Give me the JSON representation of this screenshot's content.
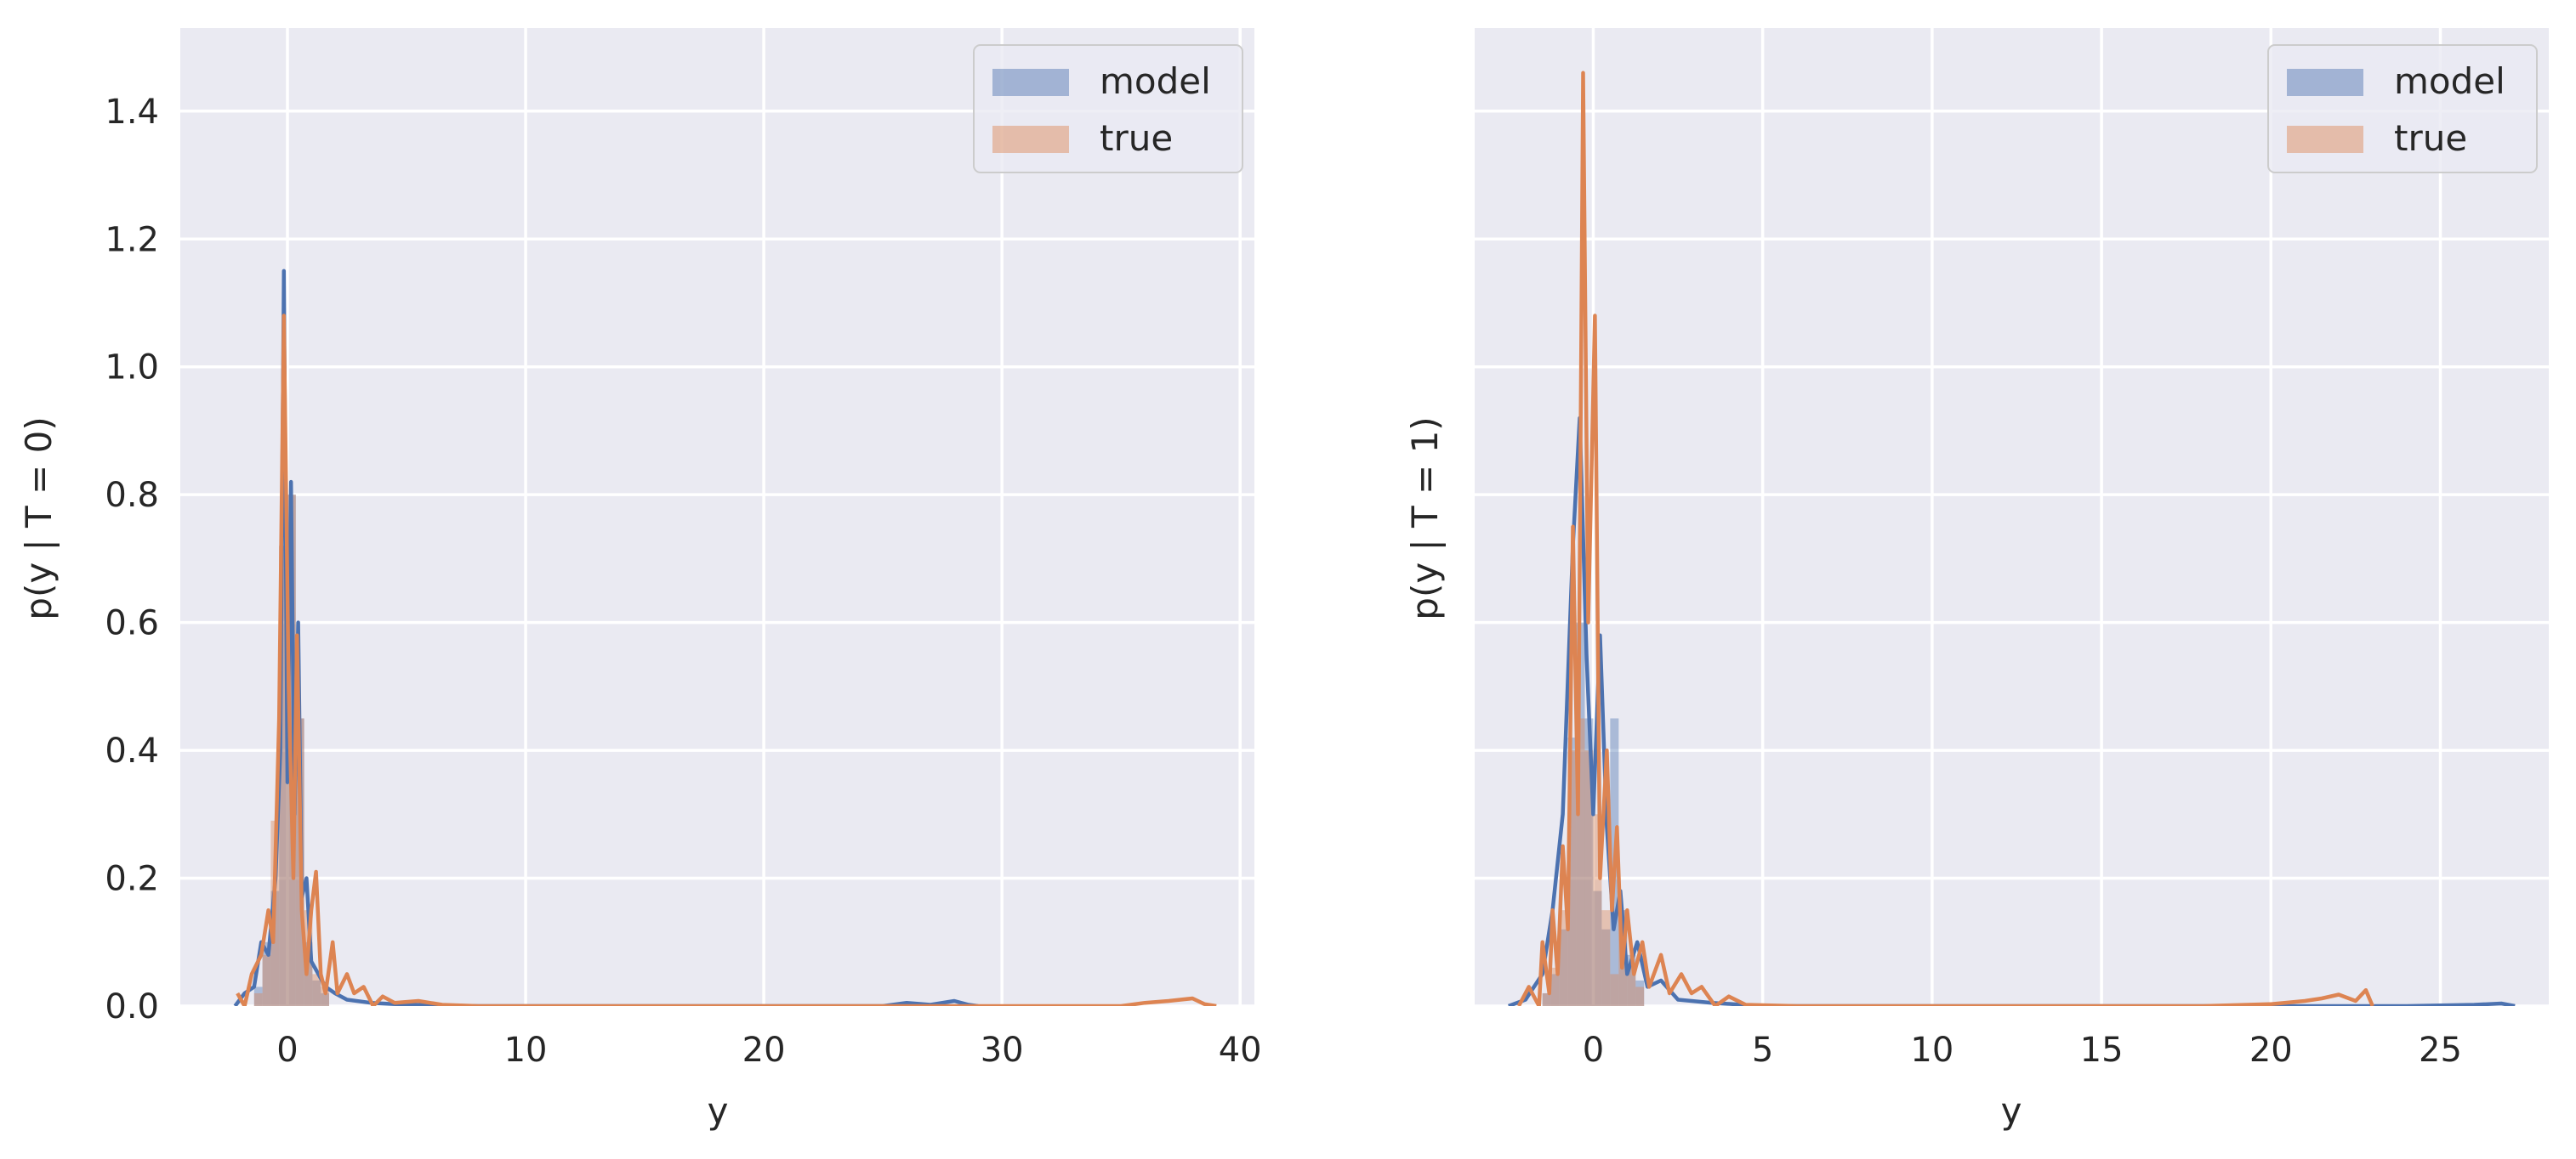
{
  "chart_data": [
    {
      "type": "area",
      "xlabel": "y",
      "ylabel": "p(y | T = 0)",
      "xlim": [
        -4.5,
        40.6
      ],
      "ylim": [
        0,
        1.53
      ],
      "xticks": [
        0,
        10,
        20,
        30,
        40
      ],
      "yticks": [
        0.0,
        0.2,
        0.4,
        0.6,
        0.8,
        1.0,
        1.2,
        1.4
      ],
      "xtick_labels": [
        "0",
        "10",
        "20",
        "30",
        "40"
      ],
      "ytick_labels": [
        "0.0",
        "0.2",
        "0.4",
        "0.6",
        "0.8",
        "1.0",
        "1.2",
        "1.4"
      ],
      "grid": true,
      "legend_position": "top-right",
      "series": [
        {
          "name": "model",
          "color": "#4c72b0",
          "hist": {
            "bin_width": 0.35,
            "bins": [
              [
                -1.4,
                0.03
              ],
              [
                -1.05,
                0.1
              ],
              [
                -0.7,
                0.18
              ],
              [
                -0.35,
                0.72
              ],
              [
                0.0,
                0.8
              ],
              [
                0.35,
                0.45
              ],
              [
                0.7,
                0.1
              ],
              [
                1.05,
                0.04
              ],
              [
                1.4,
                0.02
              ]
            ]
          },
          "density": [
            [
              -2.2,
              0.0
            ],
            [
              -1.8,
              0.02
            ],
            [
              -1.4,
              0.03
            ],
            [
              -1.1,
              0.1
            ],
            [
              -0.8,
              0.08
            ],
            [
              -0.5,
              0.2
            ],
            [
              -0.3,
              0.4
            ],
            [
              -0.15,
              1.15
            ],
            [
              0.0,
              0.35
            ],
            [
              0.15,
              0.82
            ],
            [
              0.3,
              0.3
            ],
            [
              0.45,
              0.6
            ],
            [
              0.6,
              0.17
            ],
            [
              0.8,
              0.2
            ],
            [
              1.0,
              0.07
            ],
            [
              1.3,
              0.05
            ],
            [
              1.6,
              0.03
            ],
            [
              2.0,
              0.02
            ],
            [
              2.5,
              0.01
            ],
            [
              3.5,
              0.005
            ],
            [
              5.0,
              0.002
            ],
            [
              8.0,
              0.0
            ],
            [
              15.0,
              0.0
            ],
            [
              25.0,
              0.0
            ],
            [
              26.0,
              0.005
            ],
            [
              27.0,
              0.002
            ],
            [
              28.0,
              0.008
            ],
            [
              28.6,
              0.002
            ],
            [
              29.0,
              0.0
            ]
          ]
        },
        {
          "name": "true",
          "color": "#dd8452",
          "hist": {
            "bin_width": 0.35,
            "bins": [
              [
                -1.4,
                0.02
              ],
              [
                -1.05,
                0.08
              ],
              [
                -0.7,
                0.29
              ],
              [
                -0.35,
                0.72
              ],
              [
                0.0,
                0.8
              ],
              [
                0.35,
                0.45
              ],
              [
                0.7,
                0.15
              ],
              [
                1.05,
                0.05
              ],
              [
                1.4,
                0.03
              ]
            ]
          },
          "density": [
            [
              -2.1,
              0.02
            ],
            [
              -1.8,
              0.0
            ],
            [
              -1.5,
              0.05
            ],
            [
              -1.1,
              0.08
            ],
            [
              -0.8,
              0.15
            ],
            [
              -0.6,
              0.1
            ],
            [
              -0.35,
              0.45
            ],
            [
              -0.15,
              1.08
            ],
            [
              0.05,
              0.5
            ],
            [
              0.25,
              0.2
            ],
            [
              0.4,
              0.58
            ],
            [
              0.6,
              0.15
            ],
            [
              0.8,
              0.05
            ],
            [
              1.0,
              0.15
            ],
            [
              1.2,
              0.21
            ],
            [
              1.4,
              0.05
            ],
            [
              1.6,
              0.02
            ],
            [
              1.9,
              0.1
            ],
            [
              2.1,
              0.02
            ],
            [
              2.5,
              0.05
            ],
            [
              2.8,
              0.02
            ],
            [
              3.2,
              0.03
            ],
            [
              3.6,
              0.0
            ],
            [
              4.0,
              0.015
            ],
            [
              4.5,
              0.005
            ],
            [
              5.5,
              0.008
            ],
            [
              6.5,
              0.002
            ],
            [
              8.0,
              0.0
            ],
            [
              20.0,
              0.0
            ],
            [
              35.0,
              0.0
            ],
            [
              36.0,
              0.005
            ],
            [
              37.0,
              0.008
            ],
            [
              38.0,
              0.012
            ],
            [
              38.5,
              0.003
            ],
            [
              39.0,
              0.0
            ]
          ]
        }
      ]
    },
    {
      "type": "area",
      "xlabel": "y",
      "ylabel": "p(y | T = 1)",
      "xlim": [
        -3.5,
        28.2
      ],
      "ylim": [
        0,
        1.53
      ],
      "xticks": [
        0,
        5,
        10,
        15,
        20,
        25
      ],
      "yticks": [
        0.0,
        0.2,
        0.4,
        0.6,
        0.8,
        1.0,
        1.2,
        1.4
      ],
      "xtick_labels": [
        "0",
        "5",
        "10",
        "15",
        "20",
        "25"
      ],
      "ytick_labels": [],
      "grid": true,
      "legend_position": "top-right",
      "series": [
        {
          "name": "model",
          "color": "#4c72b0",
          "hist": {
            "bin_width": 0.25,
            "bins": [
              [
                -1.5,
                0.02
              ],
              [
                -1.25,
                0.05
              ],
              [
                -1.0,
                0.12
              ],
              [
                -0.75,
                0.42
              ],
              [
                -0.5,
                0.6
              ],
              [
                -0.25,
                0.45
              ],
              [
                0.0,
                0.18
              ],
              [
                0.25,
                0.12
              ],
              [
                0.5,
                0.45
              ],
              [
                0.75,
                0.15
              ],
              [
                1.0,
                0.08
              ],
              [
                1.25,
                0.04
              ]
            ]
          },
          "density": [
            [
              -2.5,
              0.0
            ],
            [
              -2.0,
              0.01
            ],
            [
              -1.5,
              0.05
            ],
            [
              -1.2,
              0.15
            ],
            [
              -0.9,
              0.3
            ],
            [
              -0.6,
              0.72
            ],
            [
              -0.4,
              0.92
            ],
            [
              -0.2,
              0.55
            ],
            [
              0.0,
              0.3
            ],
            [
              0.2,
              0.58
            ],
            [
              0.4,
              0.28
            ],
            [
              0.6,
              0.12
            ],
            [
              0.8,
              0.18
            ],
            [
              1.0,
              0.05
            ],
            [
              1.3,
              0.1
            ],
            [
              1.6,
              0.03
            ],
            [
              2.0,
              0.04
            ],
            [
              2.5,
              0.01
            ],
            [
              3.5,
              0.005
            ],
            [
              5.0,
              0.0
            ],
            [
              15.0,
              0.0
            ],
            [
              22.0,
              0.0
            ],
            [
              24.0,
              0.0
            ],
            [
              26.0,
              0.002
            ],
            [
              26.8,
              0.004
            ],
            [
              27.2,
              0.0
            ]
          ]
        },
        {
          "name": "true",
          "color": "#dd8452",
          "hist": {
            "bin_width": 0.25,
            "bins": [
              [
                -1.5,
                0.02
              ],
              [
                -1.25,
                0.06
              ],
              [
                -1.0,
                0.15
              ],
              [
                -0.75,
                0.4
              ],
              [
                -0.5,
                0.45
              ],
              [
                -0.25,
                0.4
              ],
              [
                0.0,
                0.3
              ],
              [
                0.25,
                0.15
              ],
              [
                0.5,
                0.05
              ],
              [
                0.75,
                0.15
              ],
              [
                1.0,
                0.06
              ],
              [
                1.25,
                0.03
              ]
            ]
          },
          "density": [
            [
              -2.2,
              0.0
            ],
            [
              -1.9,
              0.03
            ],
            [
              -1.6,
              0.0
            ],
            [
              -1.5,
              0.1
            ],
            [
              -1.3,
              0.02
            ],
            [
              -1.2,
              0.15
            ],
            [
              -1.05,
              0.05
            ],
            [
              -0.9,
              0.25
            ],
            [
              -0.75,
              0.12
            ],
            [
              -0.6,
              0.75
            ],
            [
              -0.45,
              0.3
            ],
            [
              -0.3,
              1.46
            ],
            [
              -0.15,
              0.6
            ],
            [
              0.05,
              1.08
            ],
            [
              0.2,
              0.2
            ],
            [
              0.4,
              0.4
            ],
            [
              0.55,
              0.15
            ],
            [
              0.7,
              0.28
            ],
            [
              0.85,
              0.06
            ],
            [
              1.0,
              0.15
            ],
            [
              1.2,
              0.05
            ],
            [
              1.45,
              0.1
            ],
            [
              1.65,
              0.03
            ],
            [
              2.0,
              0.08
            ],
            [
              2.25,
              0.02
            ],
            [
              2.6,
              0.05
            ],
            [
              2.9,
              0.02
            ],
            [
              3.2,
              0.03
            ],
            [
              3.6,
              0.0
            ],
            [
              4.0,
              0.015
            ],
            [
              4.5,
              0.002
            ],
            [
              6.0,
              0.0
            ],
            [
              18.0,
              0.0
            ],
            [
              20.0,
              0.003
            ],
            [
              21.0,
              0.008
            ],
            [
              21.5,
              0.012
            ],
            [
              22.0,
              0.018
            ],
            [
              22.5,
              0.008
            ],
            [
              22.8,
              0.025
            ],
            [
              23.0,
              0.0
            ]
          ]
        }
      ]
    }
  ]
}
